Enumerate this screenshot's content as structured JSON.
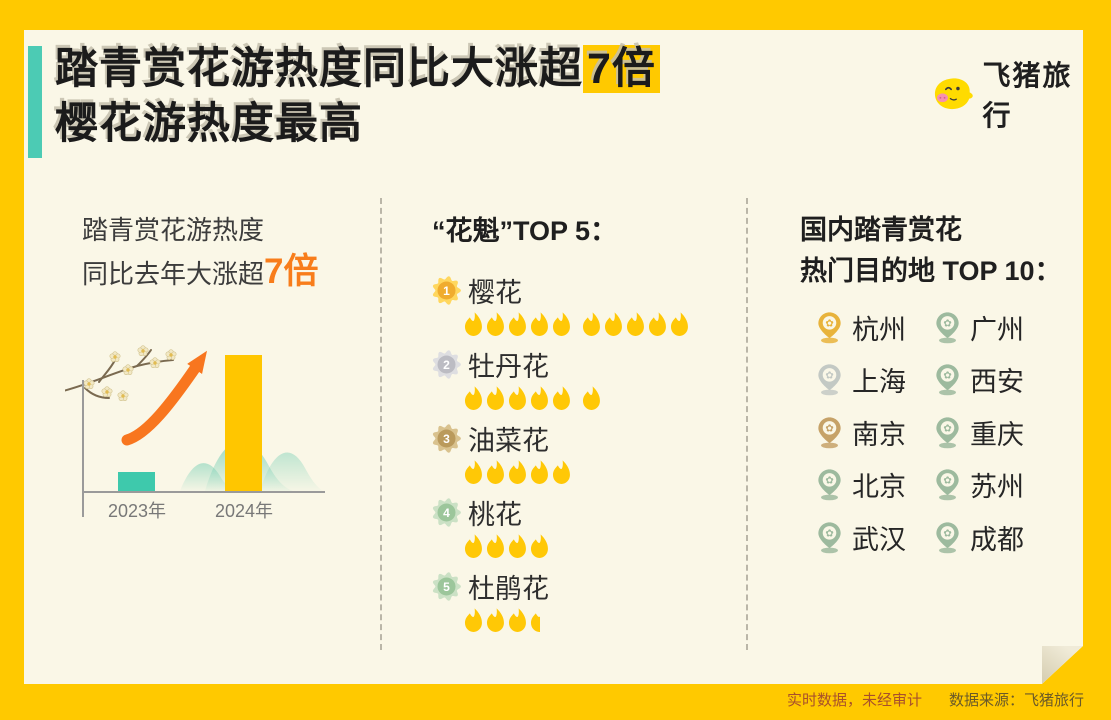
{
  "header": {
    "title_line1_pre": "踏青赏花游热度同比大涨超",
    "title_line1_highlight": "7倍",
    "title_line2": "樱花游热度最高",
    "brand_name": "飞猪旅行"
  },
  "left_panel": {
    "subtitle_line1": "踏青赏花游热度",
    "subtitle_line2_pre": "同比去年大涨超",
    "subtitle_line2_highlight": "7倍"
  },
  "chart_data": {
    "type": "bar",
    "categories": [
      "2023年",
      "2024年"
    ],
    "values": [
      1,
      7
    ],
    "title": "踏青赏花游热度",
    "annotation": "同比去年大涨超7倍",
    "xlabel": "",
    "ylabel": "",
    "grid": false,
    "legend": false,
    "bar_colors": [
      "#3EC9AC",
      "#FFC600"
    ]
  },
  "top5": {
    "heading": "“花魁”TOP 5：",
    "items": [
      {
        "rank": 1,
        "name": "樱花",
        "flames": 10,
        "medal": "gold"
      },
      {
        "rank": 2,
        "name": "牡丹花",
        "flames": 6,
        "medal": "silver"
      },
      {
        "rank": 3,
        "name": "油菜花",
        "flames": 5,
        "medal": "bronze"
      },
      {
        "rank": 4,
        "name": "桃花",
        "flames": 4,
        "medal": "green"
      },
      {
        "rank": 5,
        "name": "杜鹃花",
        "flames": 3.5,
        "medal": "green"
      }
    ]
  },
  "destinations": {
    "heading_line1": "国内踏青赏花",
    "heading_line2": "热门目的地 TOP 10：",
    "cities": [
      {
        "name": "杭州",
        "pin": "gold"
      },
      {
        "name": "广州",
        "pin": "green"
      },
      {
        "name": "上海",
        "pin": "silver"
      },
      {
        "name": "西安",
        "pin": "green"
      },
      {
        "name": "南京",
        "pin": "bronze"
      },
      {
        "name": "重庆",
        "pin": "green"
      },
      {
        "name": "北京",
        "pin": "green"
      },
      {
        "name": "苏州",
        "pin": "green"
      },
      {
        "name": "武汉",
        "pin": "green"
      },
      {
        "name": "成都",
        "pin": "green"
      }
    ]
  },
  "footer": {
    "disclaimer": "实时数据，未经审计",
    "source": "数据来源：飞猪旅行"
  },
  "colors": {
    "frame": "#FFC900",
    "card": "#FAF7E7",
    "accent_teal": "#4CCBB4",
    "orange": "#F87D1B",
    "flame": "#FFC806",
    "medal": {
      "gold": {
        "outer": "#FFD75E",
        "inner": "#F0AC2E"
      },
      "silver": {
        "outer": "#DEDEE1",
        "inner": "#BCBCC3"
      },
      "bronze": {
        "outer": "#D9C28E",
        "inner": "#BA9A5C"
      },
      "green": {
        "outer": "#CBE1C5",
        "inner": "#9CC69B"
      }
    },
    "pin": {
      "gold": "#E8B33B",
      "silver": "#C3C9C4",
      "bronze": "#C6A268",
      "green": "#9DBA9E"
    }
  }
}
